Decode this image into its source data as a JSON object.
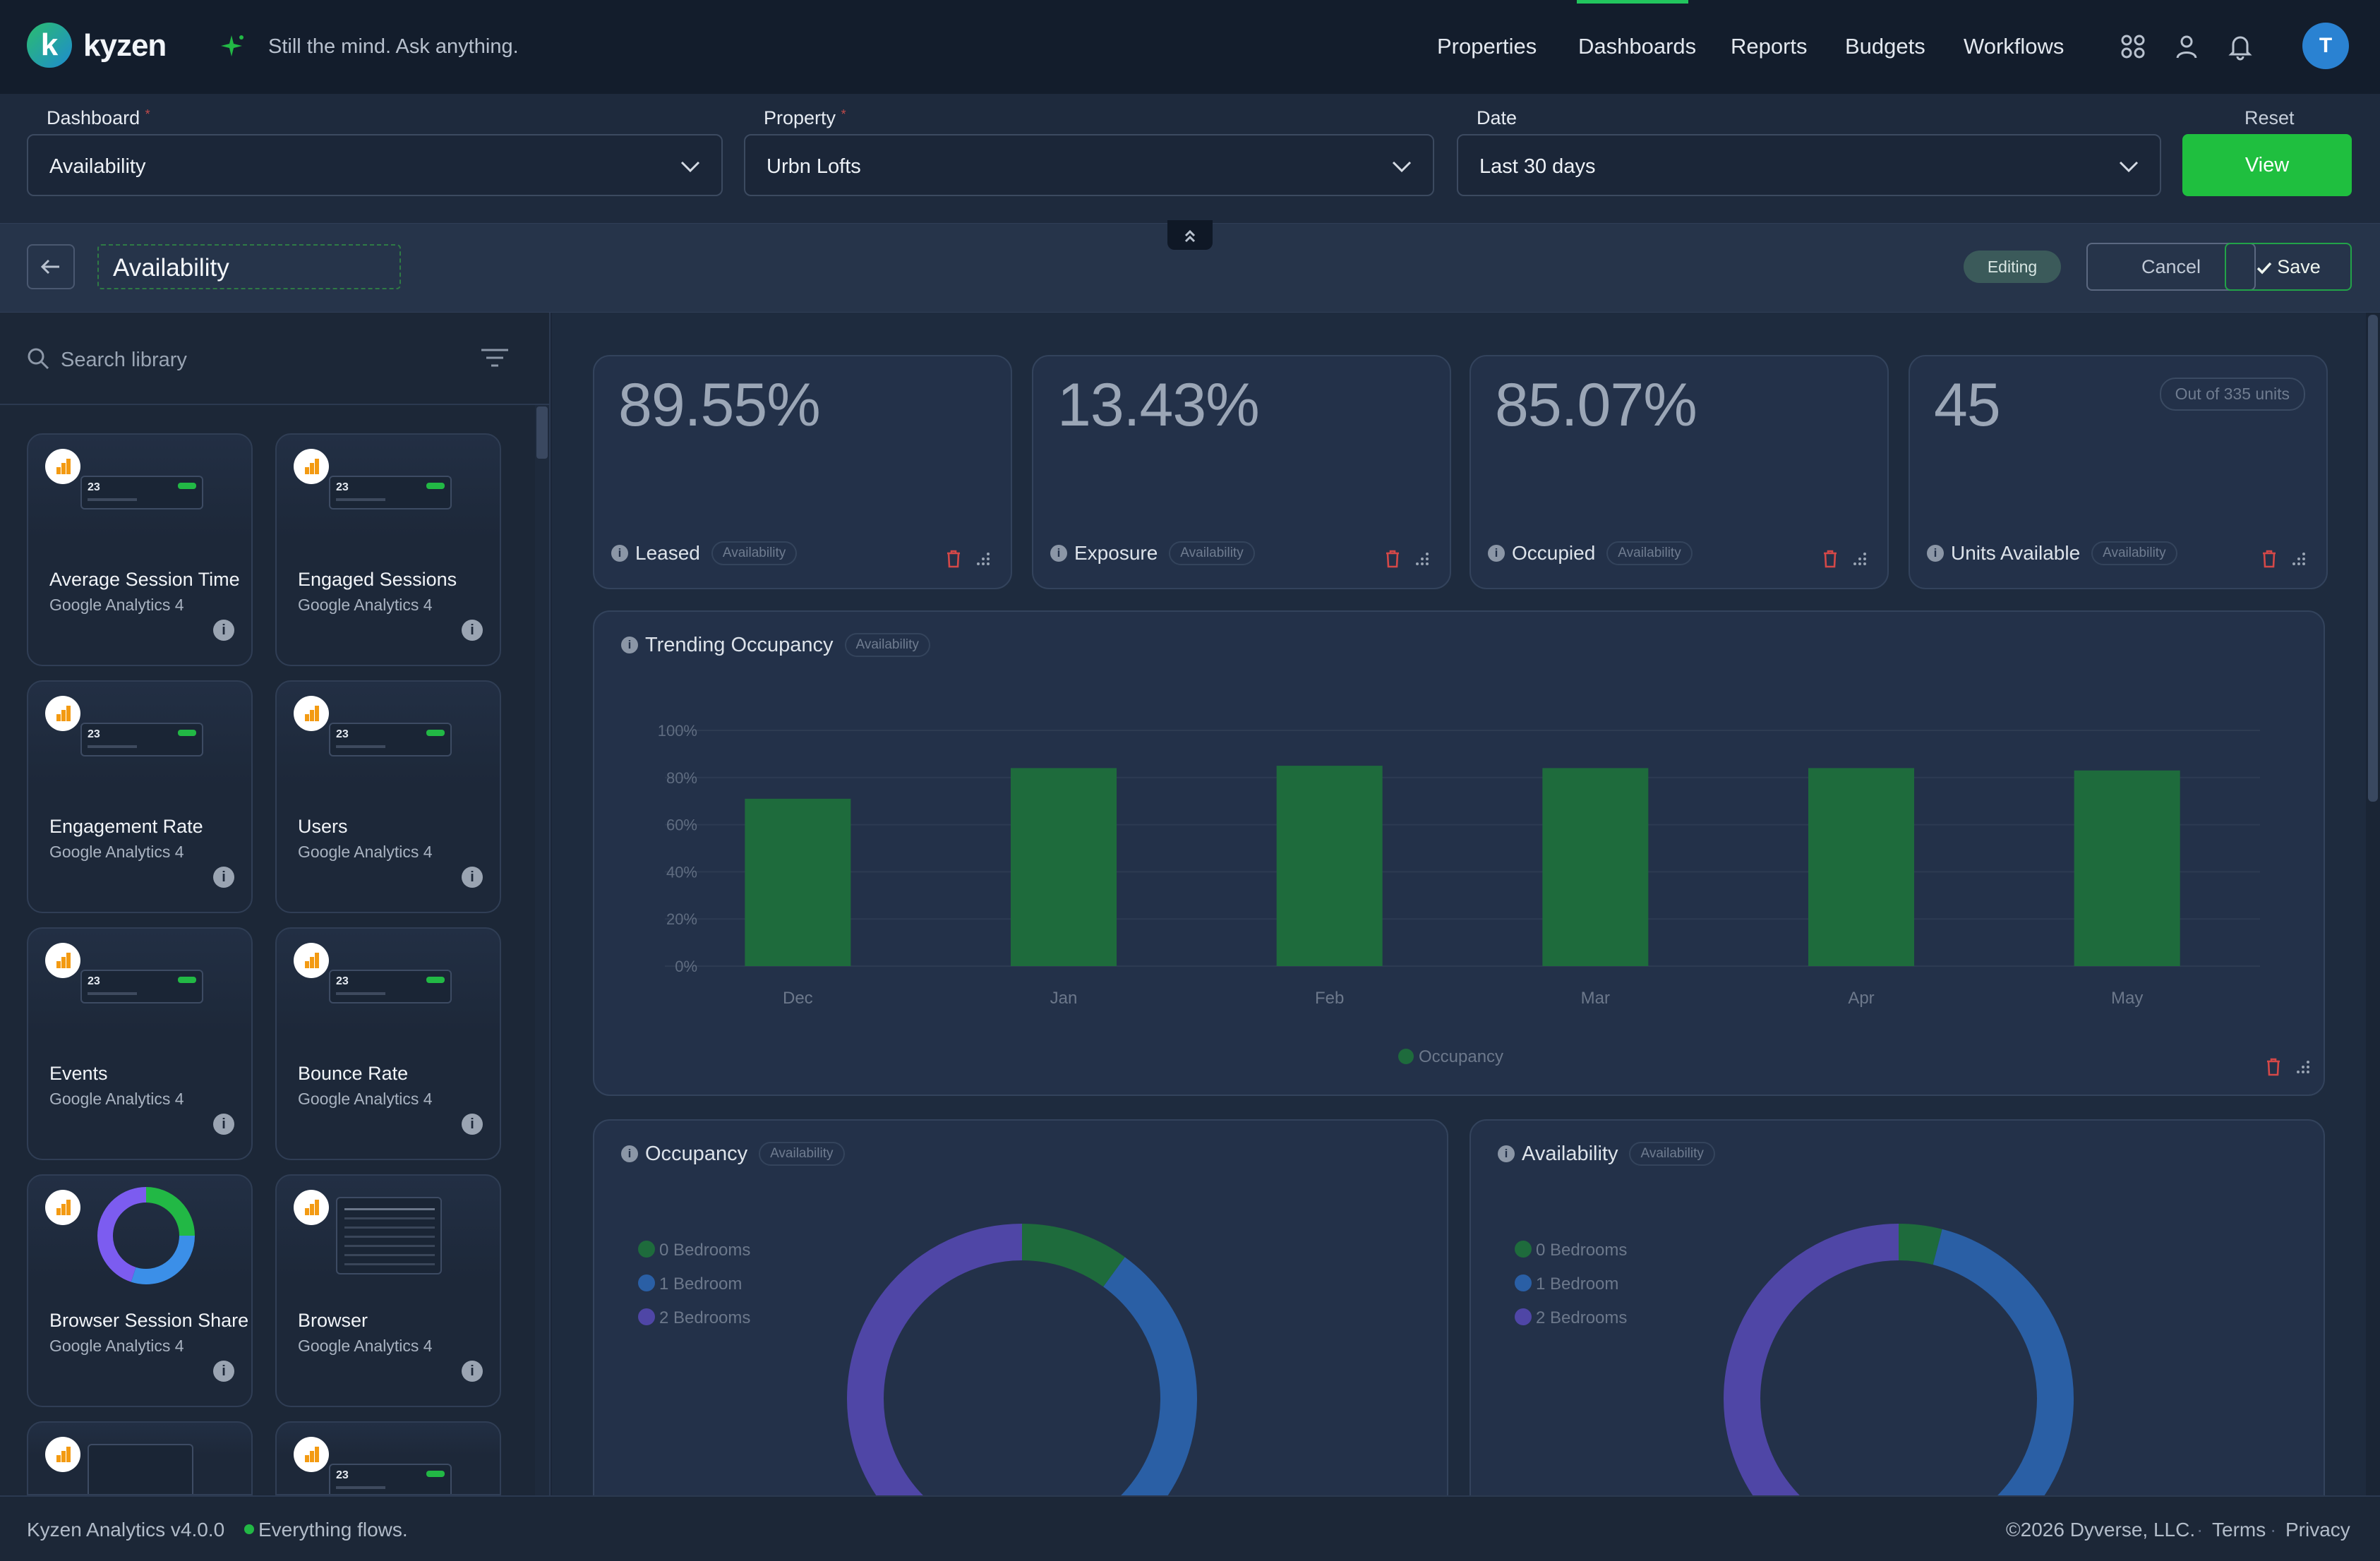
{
  "brand": {
    "name": "kyzen",
    "logo_letter": "k",
    "tagline": "Still the mind. Ask anything."
  },
  "nav": {
    "items": [
      "Properties",
      "Dashboards",
      "Reports",
      "Budgets",
      "Workflows"
    ],
    "active": "Dashboards",
    "icons": [
      "grid-icon",
      "user-icon",
      "bell-icon"
    ],
    "avatar_initial": "T"
  },
  "filters": {
    "dashboard": {
      "label": "Dashboard",
      "value": "Availability"
    },
    "property": {
      "label": "Property",
      "value": "Urbn Lofts"
    },
    "date": {
      "label": "Date",
      "value": "Last 30 days"
    },
    "reset_label": "Reset",
    "view_label": "View"
  },
  "editor": {
    "title": "Availability",
    "status_badge": "Editing",
    "cancel_label": "Cancel",
    "save_label": "Save"
  },
  "library": {
    "search_placeholder": "Search library",
    "preview_value": "23",
    "cards": [
      {
        "name": "Average Session Time",
        "source": "Google Analytics 4",
        "preview": "kpi"
      },
      {
        "name": "Engaged Sessions",
        "source": "Google Analytics 4",
        "preview": "kpi"
      },
      {
        "name": "Engagement Rate",
        "source": "Google Analytics 4",
        "preview": "kpi"
      },
      {
        "name": "Users",
        "source": "Google Analytics 4",
        "preview": "kpi"
      },
      {
        "name": "Events",
        "source": "Google Analytics 4",
        "preview": "kpi"
      },
      {
        "name": "Bounce Rate",
        "source": "Google Analytics 4",
        "preview": "kpi"
      },
      {
        "name": "Browser Session Share",
        "source": "Google Analytics 4",
        "preview": "donut"
      },
      {
        "name": "Browser",
        "source": "Google Analytics 4",
        "preview": "table"
      }
    ]
  },
  "kpis": [
    {
      "value": "89.55%",
      "label": "Leased",
      "tag": "Availability"
    },
    {
      "value": "13.43%",
      "label": "Exposure",
      "tag": "Availability"
    },
    {
      "value": "85.07%",
      "label": "Occupied",
      "tag": "Availability"
    },
    {
      "value": "45",
      "label": "Units Available",
      "tag": "Availability",
      "note": "Out of 335 units"
    }
  ],
  "trending": {
    "title": "Trending Occupancy",
    "tag": "Availability",
    "chart_data": {
      "type": "bar",
      "categories": [
        "Dec",
        "Jan",
        "Feb",
        "Mar",
        "Apr",
        "May"
      ],
      "series": [
        {
          "name": "Occupancy",
          "values": [
            71,
            84,
            85,
            84,
            84,
            83
          ],
          "color": "#1e6b3c"
        }
      ],
      "yticks": [
        "0%",
        "20%",
        "40%",
        "60%",
        "80%",
        "100%"
      ],
      "ylim": [
        0,
        100
      ],
      "grid": true,
      "legend": "bottom"
    }
  },
  "donuts": [
    {
      "title": "Occupancy",
      "tag": "Availability",
      "chart_data": {
        "type": "pie",
        "labels": [
          "0 Bedrooms",
          "1 Bedroom",
          "2 Bedrooms"
        ],
        "values": [
          10,
          40,
          50
        ],
        "colors": [
          "#1e6b3c",
          "#2a5fa5",
          "#4f46a6"
        ],
        "legend": "left"
      }
    },
    {
      "title": "Availability",
      "tag": "Availability",
      "chart_data": {
        "type": "pie",
        "labels": [
          "0 Bedrooms",
          "1 Bedroom",
          "2 Bedrooms"
        ],
        "values": [
          4,
          46,
          50
        ],
        "colors": [
          "#1e6b3c",
          "#2a5fa5",
          "#4f46a6"
        ],
        "legend": "left"
      }
    }
  ],
  "footer": {
    "version": "Kyzen Analytics v4.0.0",
    "motto": "Everything flows.",
    "copyright": "©2026 Dyverse, LLC.",
    "links": [
      "Terms",
      "Privacy"
    ]
  }
}
